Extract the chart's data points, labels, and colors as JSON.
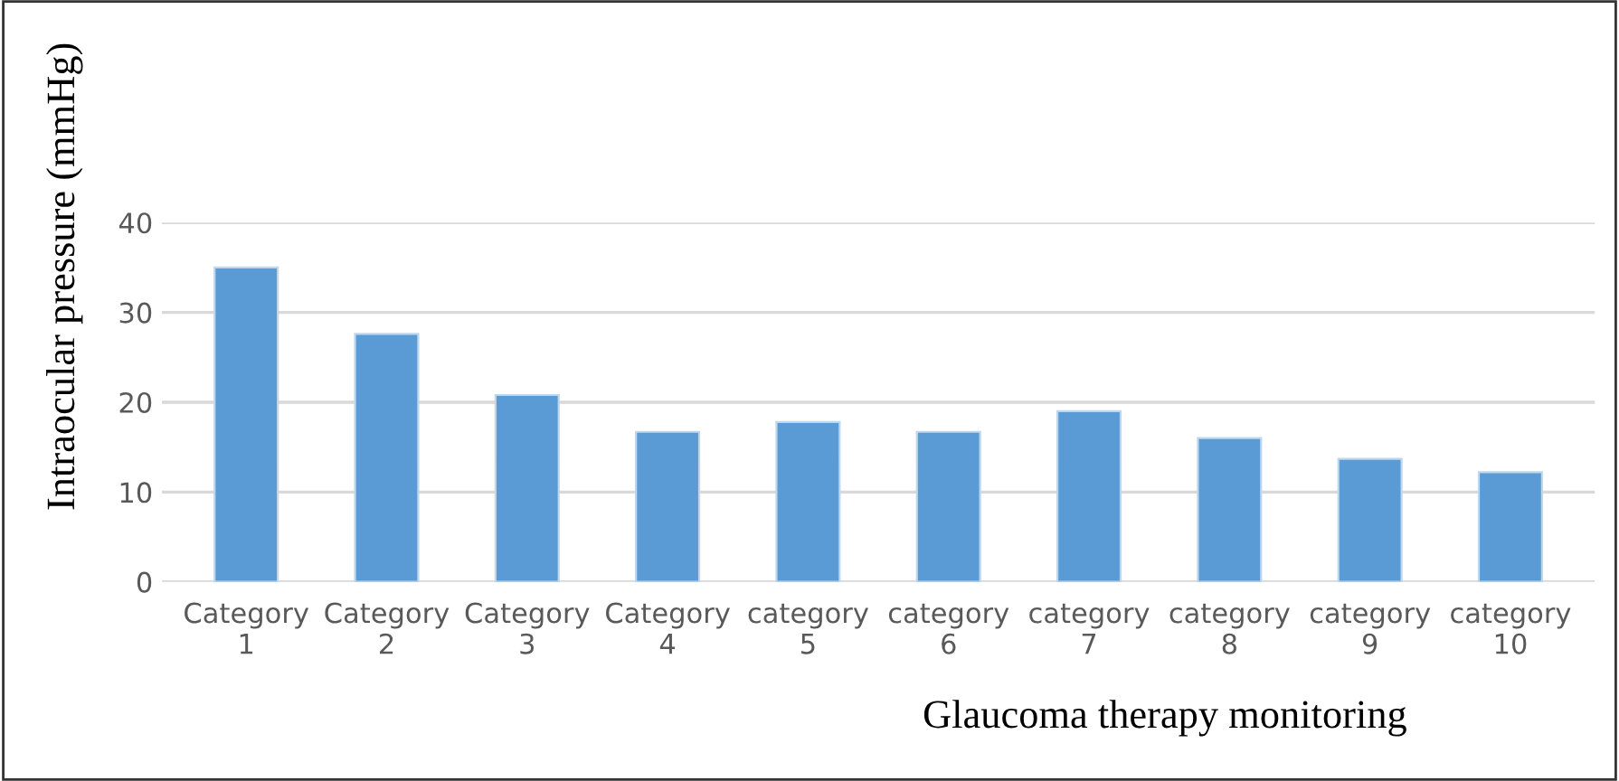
{
  "chart_data": {
    "type": "bar",
    "xlabel": "Glaucoma therapy monitoring",
    "ylabel": "Intraocular pressure (mmHg)",
    "categories": [
      "Category\n1",
      "Category\n2",
      "Category\n3",
      "Category\n4",
      "category\n5",
      "category\n6",
      "category\n7",
      "category\n8",
      "category\n9",
      "category\n10"
    ],
    "values": [
      35,
      27.6,
      20.8,
      16.7,
      17.8,
      16.7,
      19,
      16,
      13.7,
      12.2
    ],
    "color": "#5b9bd5",
    "ylim": [
      0,
      40
    ],
    "yticks": [
      0,
      10,
      20,
      30,
      40
    ],
    "grid": "y",
    "legend": false
  }
}
